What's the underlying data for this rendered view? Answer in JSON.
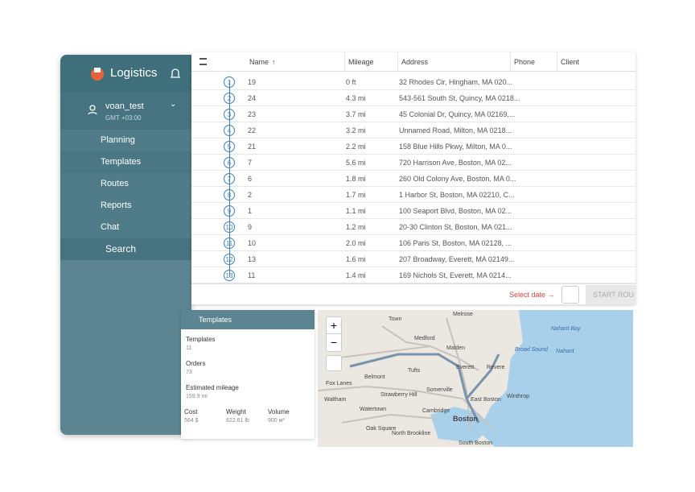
{
  "sidebar": {
    "app_title": "Logistics",
    "user": {
      "name": "voan_test",
      "timezone": "GMT +03:00"
    },
    "menu": [
      "Planning",
      "Templates",
      "Routes",
      "Reports",
      "Chat",
      "Search"
    ]
  },
  "table": {
    "headers": {
      "name": "Name",
      "name_sort": "↑",
      "mileage": "Mileage",
      "address": "Address",
      "phone": "Phone",
      "client": "Client"
    },
    "rows": [
      [
        "1",
        "19",
        "0 ft",
        "32 Rhodes Cir, Hingham, MA 020..."
      ],
      [
        "2",
        "24",
        "4.3 mi",
        "543-561 South St, Quincy, MA 0218..."
      ],
      [
        "3",
        "23",
        "3.7 mi",
        "45 Colonial Dr, Quincy, MA 02169,..."
      ],
      [
        "4",
        "22",
        "3.2 mi",
        "Unnamed Road, Milton, MA 0218..."
      ],
      [
        "5",
        "21",
        "2.2 mi",
        "158 Blue Hills Pkwy, Milton, MA 0..."
      ],
      [
        "6",
        "7",
        "5.6 mi",
        "720 Harrison Ave, Boston, MA 02..."
      ],
      [
        "7",
        "6",
        "1.8 mi",
        "260 Old Colony Ave, Boston, MA 0..."
      ],
      [
        "8",
        "2",
        "1.7 mi",
        "1 Harbor St, Boston, MA 02210, C..."
      ],
      [
        "9",
        "1",
        "1.1 mi",
        "100 Seaport Blvd, Boston, MA 02..."
      ],
      [
        "10",
        "9",
        "1.2 mi",
        "20-30 Clinton St, Boston, MA 021..."
      ],
      [
        "11",
        "10",
        "2.0 mi",
        "106 Paris St, Boston, MA 02128, ..."
      ],
      [
        "12",
        "13",
        "1.6 mi",
        "207 Broadway, Everett, MA 02149..."
      ],
      [
        "13",
        "11",
        "1.4 mi",
        "169 Nichols St, Everett, MA 0214..."
      ]
    ],
    "footer": {
      "select_date": "Select date →",
      "start_button": "START ROU"
    }
  },
  "templates_panel": {
    "title": "Templates",
    "stats": [
      {
        "label": "Templates",
        "value": "11"
      },
      {
        "label": "Orders",
        "value": "73"
      },
      {
        "label": "Estimated mileage",
        "value": "159.9 mi"
      }
    ],
    "totals": [
      {
        "label": "Cost",
        "value": "564 $"
      },
      {
        "label": "Weight",
        "value": "622.61 lb"
      },
      {
        "label": "Volume",
        "value": "900 м³"
      }
    ]
  },
  "map": {
    "zoom_in": "+",
    "zoom_out": "−",
    "labels": [
      "Melrose",
      "Town",
      "Medford",
      "Malden",
      "Everett",
      "Revere",
      "Winthrop",
      "East Boston",
      "Somerville",
      "Tufts",
      "Cambridge",
      "Boston",
      "Waltham",
      "Watertown",
      "Belmont",
      "Strawberry Hill",
      "Oak Square",
      "North Brookline",
      "South Boston",
      "Nahant Bay",
      "Nahant",
      "Broad Sound",
      "Fox Lanes"
    ]
  }
}
